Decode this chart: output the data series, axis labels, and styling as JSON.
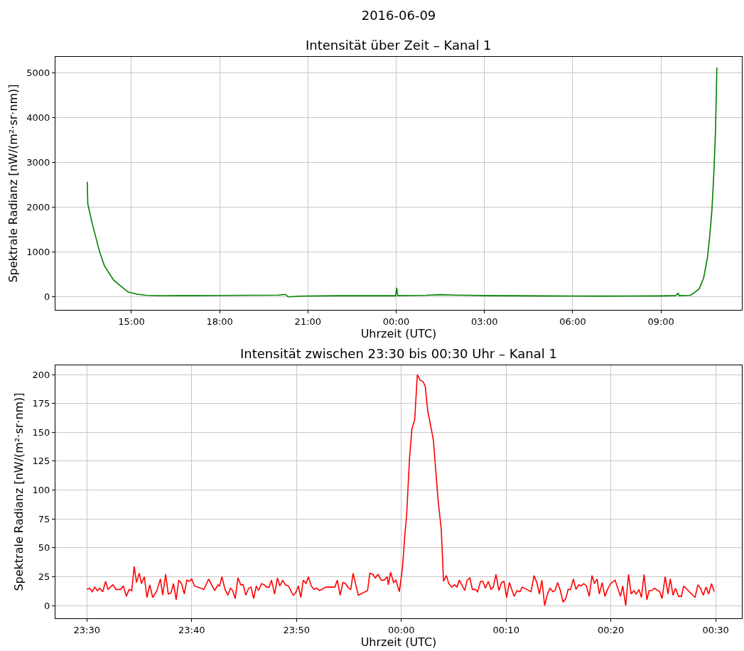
{
  "chart_data": [
    {
      "type": "line",
      "title": "2016-06-09",
      "subtitle": "Intensität über Zeit – Kanal 1",
      "xlabel": "Uhrzeit (UTC)",
      "ylabel": "Spektrale Radianz [nW/(m²·sr·nm)]",
      "x": [
        "2016-06-09T13:30",
        "2016-06-09T13:31",
        "2016-06-09T13:40",
        "2016-06-09T13:55",
        "2016-06-09T14:05",
        "2016-06-09T14:24",
        "2016-06-09T14:53",
        "2016-06-09T15:12",
        "2016-06-09T15:30",
        "2016-06-09T16:00",
        "2016-06-09T17:00",
        "2016-06-09T18:00",
        "2016-06-09T19:00",
        "2016-06-09T20:00",
        "2016-06-09T20:14",
        "2016-06-09T20:20",
        "2016-06-09T20:40",
        "2016-06-09T21:00",
        "2016-06-09T22:00",
        "2016-06-09T23:00",
        "2016-06-09T23:59",
        "2016-06-10T00:01",
        "2016-06-10T00:03",
        "2016-06-10T01:00",
        "2016-06-10T01:30",
        "2016-06-10T02:00",
        "2016-06-10T03:00",
        "2016-06-10T04:00",
        "2016-06-10T05:00",
        "2016-06-10T06:00",
        "2016-06-10T07:00",
        "2016-06-10T08:00",
        "2016-06-10T09:00",
        "2016-06-10T09:30",
        "2016-06-10T09:35",
        "2016-06-10T09:37",
        "2016-06-10T10:00",
        "2016-06-10T10:05",
        "2016-06-10T10:18",
        "2016-06-10T10:27",
        "2016-06-10T10:35",
        "2016-06-10T10:40",
        "2016-06-10T10:44",
        "2016-06-10T10:48",
        "2016-06-10T10:51",
        "2016-06-10T10:53",
        "2016-06-10T10:54"
      ],
      "series": [
        {
          "color": "#008000",
          "values": [
            2560,
            2070,
            1630,
            1000,
            680,
            360,
            100,
            50,
            25,
            18,
            20,
            22,
            25,
            30,
            45,
            -10,
            5,
            10,
            15,
            15,
            15,
            195,
            20,
            25,
            40,
            30,
            20,
            15,
            12,
            10,
            8,
            10,
            12,
            20,
            70,
            20,
            25,
            60,
            170,
            410,
            880,
            1410,
            1940,
            2780,
            3620,
            4530,
            5110
          ]
        }
      ],
      "xlim": [
        "2016-06-09T12:25",
        "2016-06-10T11:45"
      ],
      "xticks": [
        {
          "value": "2016-06-09T15:00",
          "label": "15:00"
        },
        {
          "value": "2016-06-09T18:00",
          "label": "18:00"
        },
        {
          "value": "2016-06-09T21:00",
          "label": "21:00"
        },
        {
          "value": "2016-06-10T00:00",
          "label": "00:00"
        },
        {
          "value": "2016-06-10T03:00",
          "label": "03:00"
        },
        {
          "value": "2016-06-10T06:00",
          "label": "06:00"
        },
        {
          "value": "2016-06-10T09:00",
          "label": "09:00"
        }
      ],
      "ylim": [
        -300,
        5350
      ],
      "yticks": [
        0,
        1000,
        2000,
        3000,
        4000,
        5000
      ],
      "grid": true,
      "line_style": "solid"
    },
    {
      "type": "line",
      "title": "Intensität zwischen 23:30 bis 00:30 Uhr – Kanal 1",
      "xlabel": "Uhrzeit (UTC)",
      "ylabel": "Spektrale Radianz [nW/(m²·sr·nm)]",
      "x": [
        "2016-06-09T23:30:00",
        "2016-06-09T23:30:17",
        "2016-06-09T23:30:31",
        "2016-06-09T23:30:44",
        "2016-06-09T23:31:00",
        "2016-06-09T23:31:14",
        "2016-06-09T23:31:31",
        "2016-06-09T23:31:47",
        "2016-06-09T23:32:01",
        "2016-06-09T23:32:29",
        "2016-06-09T23:32:46",
        "2016-06-09T23:33:12",
        "2016-06-09T23:33:29",
        "2016-06-09T23:33:46",
        "2016-06-09T23:34:02",
        "2016-06-09T23:34:17",
        "2016-06-09T23:34:31",
        "2016-06-09T23:34:44",
        "2016-06-09T23:35:00",
        "2016-06-09T23:35:13",
        "2016-06-09T23:35:29",
        "2016-06-09T23:35:44",
        "2016-06-09T23:36:00",
        "2016-06-09T23:36:17",
        "2016-06-09T23:36:41",
        "2016-06-09T23:37:01",
        "2016-06-09T23:37:14",
        "2016-06-09T23:37:31",
        "2016-06-09T23:37:46",
        "2016-06-09T23:38:02",
        "2016-06-09T23:38:16",
        "2016-06-09T23:38:31",
        "2016-06-09T23:38:46",
        "2016-06-09T23:39:02",
        "2016-06-09T23:39:18",
        "2016-06-09T23:39:32",
        "2016-06-09T23:39:47",
        "2016-06-09T23:40:00",
        "2016-06-09T23:40:16",
        "2016-06-09T23:41:10",
        "2016-06-09T23:41:37",
        "2016-06-09T23:42:11",
        "2016-06-09T23:42:31",
        "2016-06-09T23:42:40",
        "2016-06-09T23:42:53",
        "2016-06-09T23:43:11",
        "2016-06-09T23:43:27",
        "2016-06-09T23:43:42",
        "2016-06-09T23:43:55",
        "2016-06-09T23:44:09",
        "2016-06-09T23:44:25",
        "2016-06-09T23:44:41",
        "2016-06-09T23:44:55",
        "2016-06-09T23:45:10",
        "2016-06-09T23:45:26",
        "2016-06-09T23:45:40",
        "2016-06-09T23:45:55",
        "2016-06-09T23:46:10",
        "2016-06-09T23:46:23",
        "2016-06-09T23:46:40",
        "2016-06-09T23:46:56",
        "2016-06-09T23:47:09",
        "2016-06-09T23:47:24",
        "2016-06-09T23:47:37",
        "2016-06-09T23:47:55",
        "2016-06-09T23:48:11",
        "2016-06-09T23:48:25",
        "2016-06-09T23:48:41",
        "2016-06-09T23:48:57",
        "2016-06-09T23:49:14",
        "2016-06-09T23:49:41",
        "2016-06-09T23:49:55",
        "2016-06-09T23:50:11",
        "2016-06-09T23:50:25",
        "2016-06-09T23:50:39",
        "2016-06-09T23:50:55",
        "2016-06-09T23:51:08",
        "2016-06-09T23:51:25",
        "2016-06-09T23:51:40",
        "2016-06-09T23:51:56",
        "2016-06-09T23:52:12",
        "2016-06-09T23:52:49",
        "2016-06-09T23:53:07",
        "2016-06-09T23:53:23",
        "2016-06-09T23:53:40",
        "2016-06-09T23:53:54",
        "2016-06-09T23:54:10",
        "2016-06-09T23:54:26",
        "2016-06-09T23:54:41",
        "2016-06-09T23:54:58",
        "2016-06-09T23:55:11",
        "2016-06-09T23:55:24",
        "2016-06-09T23:55:54",
        "2016-06-09T23:56:47",
        "2016-06-09T23:57:00",
        "2016-06-09T23:57:18",
        "2016-06-09T23:57:31",
        "2016-06-09T23:57:47",
        "2016-06-09T23:58:05",
        "2016-06-09T23:58:22",
        "2016-06-09T23:58:39",
        "2016-06-09T23:58:46",
        "2016-06-09T23:58:59",
        "2016-06-09T23:59:16",
        "2016-06-09T23:59:29",
        "2016-06-09T23:59:49",
        "2016-06-10T00:00:07",
        "2016-06-10T00:00:20",
        "2016-06-10T00:00:31",
        "2016-06-10T00:00:47",
        "2016-06-10T00:01:01",
        "2016-06-10T00:01:17",
        "2016-06-10T00:01:32",
        "2016-06-10T00:01:48",
        "2016-06-10T00:02:04",
        "2016-06-10T00:02:17",
        "2016-06-10T00:02:32",
        "2016-06-10T00:02:48",
        "2016-06-10T00:03:04",
        "2016-06-10T00:03:17",
        "2016-06-10T00:03:31",
        "2016-06-10T00:03:49",
        "2016-06-10T00:04:02",
        "2016-06-10T00:04:18",
        "2016-06-10T00:04:32",
        "2016-06-10T00:04:49",
        "2016-06-10T00:05:05",
        "2016-06-10T00:05:19",
        "2016-06-10T00:05:32",
        "2016-06-10T00:05:47",
        "2016-06-10T00:06:03",
        "2016-06-10T00:06:17",
        "2016-06-10T00:06:33",
        "2016-06-10T00:06:47",
        "2016-06-10T00:07:04",
        "2016-06-10T00:07:17",
        "2016-06-10T00:07:34",
        "2016-06-10T00:07:47",
        "2016-06-10T00:08:02",
        "2016-06-10T00:08:18",
        "2016-06-10T00:08:34",
        "2016-06-10T00:08:47",
        "2016-06-10T00:09:02",
        "2016-06-10T00:09:19",
        "2016-06-10T00:09:34",
        "2016-06-10T00:09:48",
        "2016-06-10T00:10:03",
        "2016-06-10T00:10:19",
        "2016-06-10T00:10:46",
        "2016-06-10T00:11:03",
        "2016-06-10T00:11:19",
        "2016-06-10T00:11:33",
        "2016-06-10T00:12:23",
        "2016-06-10T00:12:40",
        "2016-06-10T00:12:56",
        "2016-06-10T00:13:11",
        "2016-06-10T00:13:25",
        "2016-06-10T00:13:41",
        "2016-06-10T00:13:57",
        "2016-06-10T00:14:12",
        "2016-06-10T00:14:28",
        "2016-06-10T00:14:41",
        "2016-06-10T00:14:55",
        "2016-06-10T00:15:11",
        "2016-06-10T00:15:26",
        "2016-06-10T00:15:42",
        "2016-06-10T00:15:55",
        "2016-06-10T00:16:09",
        "2016-06-10T00:16:25",
        "2016-06-10T00:16:40",
        "2016-06-10T00:16:56",
        "2016-06-10T00:17:09",
        "2016-06-10T00:17:25",
        "2016-06-10T00:17:40",
        "2016-06-10T00:17:56",
        "2016-06-10T00:18:12",
        "2016-06-10T00:18:26",
        "2016-06-10T00:18:41",
        "2016-06-10T00:18:54",
        "2016-06-10T00:19:10",
        "2016-06-10T00:19:26",
        "2016-06-10T00:19:41",
        "2016-06-10T00:19:58",
        "2016-06-10T00:20:24",
        "2016-06-10T00:20:55",
        "2016-06-10T00:21:08",
        "2016-06-10T00:21:25",
        "2016-06-10T00:21:41",
        "2016-06-10T00:21:56",
        "2016-06-10T00:22:12",
        "2016-06-10T00:22:25",
        "2016-06-10T00:22:41",
        "2016-06-10T00:22:55",
        "2016-06-10T00:23:10",
        "2016-06-10T00:23:26",
        "2016-06-10T00:23:39",
        "2016-06-10T00:23:55",
        "2016-06-10T00:24:09",
        "2016-06-10T00:24:40",
        "2016-06-10T00:24:53",
        "2016-06-10T00:25:11",
        "2016-06-10T00:25:27",
        "2016-06-10T00:25:40",
        "2016-06-10T00:25:56",
        "2016-06-10T00:26:10",
        "2016-06-10T00:26:28",
        "2016-06-10T00:26:44",
        "2016-06-10T00:26:57",
        "2016-06-10T00:28:02",
        "2016-06-10T00:28:18",
        "2016-06-10T00:28:33",
        "2016-06-10T00:28:49",
        "2016-06-10T00:29:05",
        "2016-06-10T00:29:20",
        "2016-06-10T00:29:36",
        "2016-06-10T00:29:52"
      ],
      "series": [
        {
          "color": "#ff0000",
          "values": [
            14,
            15,
            12,
            16,
            13,
            15,
            12,
            21,
            14,
            18,
            14,
            14,
            17,
            8,
            14,
            13,
            34,
            20,
            28,
            19,
            25,
            7,
            18,
            7,
            13,
            23,
            9,
            27,
            10,
            11,
            19,
            5,
            22,
            19,
            10,
            22,
            21,
            23,
            17,
            14,
            23,
            13,
            18,
            17,
            25,
            14,
            9,
            15,
            13,
            6,
            24,
            18,
            18,
            9,
            15,
            16,
            6,
            17,
            13,
            19,
            18,
            16,
            16,
            22,
            10,
            24,
            17,
            22,
            18,
            17,
            9,
            11,
            17,
            7,
            22,
            19,
            25,
            17,
            14,
            15,
            13,
            16,
            16,
            16,
            16,
            22,
            9,
            20,
            19,
            15,
            14,
            28,
            9,
            13,
            28,
            27,
            24,
            27,
            22,
            22,
            25,
            18,
            29,
            20,
            22,
            12,
            33,
            60,
            79,
            127,
            153,
            161,
            200,
            195,
            194,
            190,
            168,
            156,
            143,
            118,
            91,
            66,
            21,
            26,
            19,
            16,
            18,
            16,
            22,
            18,
            13,
            22,
            24,
            14,
            14,
            12,
            21,
            21,
            15,
            21,
            14,
            16,
            27,
            13,
            20,
            21,
            7,
            20,
            8,
            13,
            12,
            16,
            12,
            26,
            20,
            10,
            22,
            0,
            10,
            15,
            12,
            13,
            20,
            13,
            3,
            6,
            14,
            14,
            23,
            14,
            18,
            17,
            19,
            17,
            8,
            26,
            19,
            23,
            10,
            20,
            8,
            14,
            19,
            22,
            8,
            17,
            0,
            27,
            10,
            13,
            10,
            14,
            7,
            27,
            5,
            13,
            13,
            15,
            12,
            6,
            25,
            10,
            23,
            9,
            15,
            8,
            8,
            17,
            7,
            18,
            15,
            9,
            16,
            10,
            19,
            12
          ]
        }
      ],
      "xlim": [
        "2016-06-09T23:27",
        "2016-06-10T00:32:30"
      ],
      "xticks": [
        {
          "value": "2016-06-09T23:30",
          "label": "23:30"
        },
        {
          "value": "2016-06-09T23:40",
          "label": "23:40"
        },
        {
          "value": "2016-06-09T23:50",
          "label": "23:50"
        },
        {
          "value": "2016-06-10T00:00",
          "label": "00:00"
        },
        {
          "value": "2016-06-10T00:10",
          "label": "00:10"
        },
        {
          "value": "2016-06-10T00:20",
          "label": "00:20"
        },
        {
          "value": "2016-06-10T00:30",
          "label": "00:30"
        }
      ],
      "ylim": [
        -11,
        208
      ],
      "yticks": [
        0,
        25,
        50,
        75,
        100,
        125,
        150,
        175,
        200
      ],
      "grid": true,
      "line_style": "solid"
    }
  ]
}
